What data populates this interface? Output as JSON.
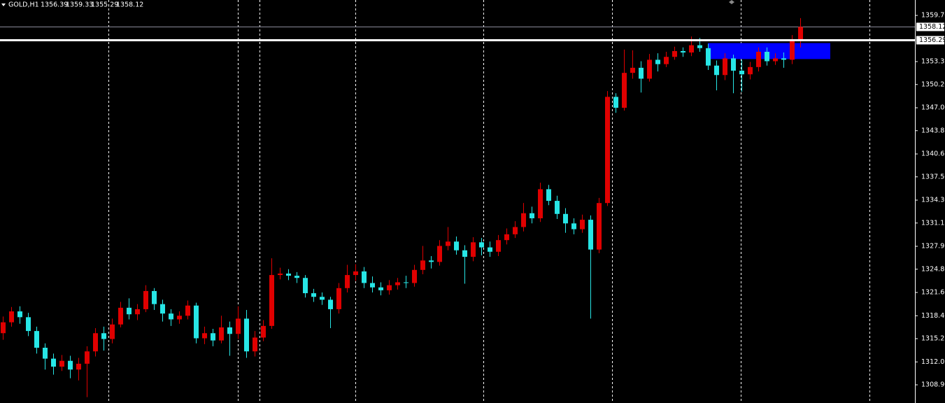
{
  "chart_data": {
    "type": "candlestick",
    "symbol": "GOLD,H1",
    "bull_color": "#e00000",
    "bear_color": "#27e6e6",
    "open": [
      1316.0,
      1317.5,
      1319.0,
      1318.2,
      1316.3,
      1314.0,
      1312.5,
      1311.4,
      1312.2,
      1311.0,
      1311.8,
      1313.5,
      1316.0,
      1315.2,
      1317.2,
      1319.5,
      1318.6,
      1319.3,
      1321.8,
      1320.0,
      1318.7,
      1317.9,
      1318.4,
      1319.8,
      1315.3,
      1316.0,
      1315.0,
      1316.8,
      1315.9,
      1318.0,
      1313.5,
      1315.4,
      1317.0,
      1324.0,
      1324.2,
      1323.9,
      1323.6,
      1321.5,
      1321.0,
      1320.6,
      1319.3,
      1322.2,
      1324.0,
      1324.5,
      1322.9,
      1322.3,
      1321.9,
      1322.6,
      1323.0,
      1322.9,
      1324.7,
      1326.0,
      1325.8,
      1328.0,
      1328.6,
      1327.4,
      1326.5,
      1328.5,
      1327.8,
      1327.2,
      1328.8,
      1329.6,
      1330.6,
      1332.5,
      1331.8,
      1335.8,
      1334.2,
      1332.4,
      1331.1,
      1330.3,
      1331.6,
      1327.5,
      1333.9,
      1348.5,
      1347.0,
      1351.8,
      1352.5,
      1351.0,
      1353.6,
      1353.0,
      1354.0,
      1354.8,
      1354.6,
      1355.6,
      1355.2,
      1352.8,
      1351.5,
      1353.8,
      1352.1,
      1351.6,
      1352.6,
      1354.7,
      1353.4,
      1353.8,
      1353.6,
      1356.39
    ],
    "high": [
      1318.3,
      1319.6,
      1319.7,
      1318.8,
      1316.9,
      1314.6,
      1313.2,
      1313.0,
      1312.9,
      1312.6,
      1314.2,
      1316.7,
      1316.9,
      1318.0,
      1320.3,
      1320.8,
      1320.0,
      1322.6,
      1322.2,
      1320.6,
      1319.3,
      1319.0,
      1320.5,
      1320.2,
      1316.9,
      1316.6,
      1318.4,
      1317.6,
      1319.7,
      1319.2,
      1316.3,
      1317.8,
      1326.3,
      1325.0,
      1324.8,
      1324.4,
      1324.0,
      1322.1,
      1321.6,
      1321.0,
      1322.9,
      1325.4,
      1325.5,
      1325.1,
      1323.8,
      1323.0,
      1323.3,
      1323.6,
      1323.9,
      1325.4,
      1328.0,
      1326.6,
      1328.8,
      1330.6,
      1329.3,
      1328.1,
      1329.2,
      1329.1,
      1328.6,
      1329.5,
      1330.4,
      1331.4,
      1333.9,
      1333.4,
      1336.7,
      1336.4,
      1334.9,
      1333.2,
      1331.8,
      1332.3,
      1332.2,
      1334.6,
      1349.3,
      1349.0,
      1355.0,
      1354.9,
      1353.4,
      1354.4,
      1354.5,
      1354.7,
      1355.4,
      1355.3,
      1356.8,
      1356.6,
      1355.8,
      1353.5,
      1354.5,
      1354.3,
      1353.6,
      1353.3,
      1355.3,
      1355.3,
      1354.5,
      1354.6,
      1357.0,
      1359.33
    ],
    "low": [
      1315.1,
      1316.9,
      1317.3,
      1315.6,
      1313.2,
      1311.0,
      1310.3,
      1310.8,
      1309.8,
      1309.5,
      1307.2,
      1312.8,
      1313.6,
      1314.6,
      1316.8,
      1317.9,
      1317.8,
      1318.9,
      1319.2,
      1317.6,
      1317.0,
      1317.3,
      1317.9,
      1314.6,
      1314.5,
      1314.2,
      1314.6,
      1312.9,
      1315.2,
      1312.6,
      1312.8,
      1314.9,
      1316.6,
      1323.4,
      1323.3,
      1322.9,
      1320.9,
      1320.3,
      1319.9,
      1316.7,
      1318.7,
      1321.6,
      1323.2,
      1322.2,
      1321.6,
      1321.2,
      1321.3,
      1322.0,
      1322.2,
      1322.4,
      1324.1,
      1324.9,
      1325.3,
      1327.4,
      1326.8,
      1322.8,
      1325.9,
      1326.7,
      1326.5,
      1326.6,
      1328.2,
      1329.1,
      1330.0,
      1331.1,
      1331.3,
      1333.6,
      1331.7,
      1329.8,
      1329.6,
      1329.8,
      1318.0,
      1327.0,
      1333.5,
      1346.3,
      1346.6,
      1351.0,
      1349.1,
      1350.6,
      1352.0,
      1352.6,
      1353.6,
      1354.0,
      1354.1,
      1354.7,
      1352.2,
      1349.4,
      1350.8,
      1349.0,
      1349.2,
      1350.9,
      1352.0,
      1352.8,
      1352.9,
      1352.5,
      1353.0,
      1355.29
    ],
    "close": [
      1317.5,
      1319.0,
      1318.2,
      1316.3,
      1314.0,
      1312.5,
      1311.4,
      1312.2,
      1311.0,
      1311.8,
      1313.5,
      1316.0,
      1315.2,
      1317.2,
      1319.5,
      1318.6,
      1319.3,
      1321.8,
      1320.0,
      1318.7,
      1317.9,
      1318.4,
      1319.8,
      1315.3,
      1316.0,
      1315.0,
      1316.8,
      1315.9,
      1318.0,
      1313.5,
      1315.4,
      1317.0,
      1324.0,
      1324.2,
      1323.9,
      1323.6,
      1321.5,
      1321.0,
      1320.6,
      1319.3,
      1322.2,
      1324.0,
      1324.5,
      1322.9,
      1322.3,
      1321.9,
      1322.6,
      1323.0,
      1322.9,
      1324.7,
      1326.0,
      1325.8,
      1328.0,
      1328.6,
      1327.4,
      1326.5,
      1328.5,
      1327.8,
      1327.2,
      1328.8,
      1329.6,
      1330.6,
      1332.5,
      1331.8,
      1335.8,
      1334.2,
      1332.4,
      1331.1,
      1330.3,
      1331.6,
      1327.5,
      1333.9,
      1348.5,
      1347.0,
      1351.8,
      1352.5,
      1351.0,
      1353.6,
      1353.0,
      1354.0,
      1354.8,
      1354.6,
      1355.6,
      1355.2,
      1352.8,
      1351.5,
      1353.8,
      1352.1,
      1351.6,
      1352.6,
      1354.7,
      1353.4,
      1353.8,
      1353.6,
      1356.39,
      1358.12
    ],
    "ylim": [
      1306.4,
      1361.82
    ],
    "yticks": [
      {
        "value": 1359.7,
        "label": "1359.70"
      },
      1353.35,
      {
        "value": 1350.2,
        "label": "1350.20"
      },
      {
        "value": 1347.0,
        "label": "1347.00"
      },
      1343.85,
      1340.65,
      {
        "value": 1337.5,
        "label": "1337.50"
      },
      {
        "value": 1334.3,
        "label": "1334.30"
      },
      1331.15,
      1327.95,
      {
        "value": 1324.8,
        "label": "1324.80"
      },
      {
        "value": 1321.6,
        "label": "1321.60"
      },
      {
        "value": 1318.4,
        "label": "1318.40"
      },
      1315.25,
      1312.05,
      {
        "value": 1308.9,
        "label": "1308.90"
      }
    ],
    "hline": 1356.29,
    "zone": {
      "top": 1355.9,
      "bottom": 1353.7,
      "color": "#0000ff"
    }
  }
}
